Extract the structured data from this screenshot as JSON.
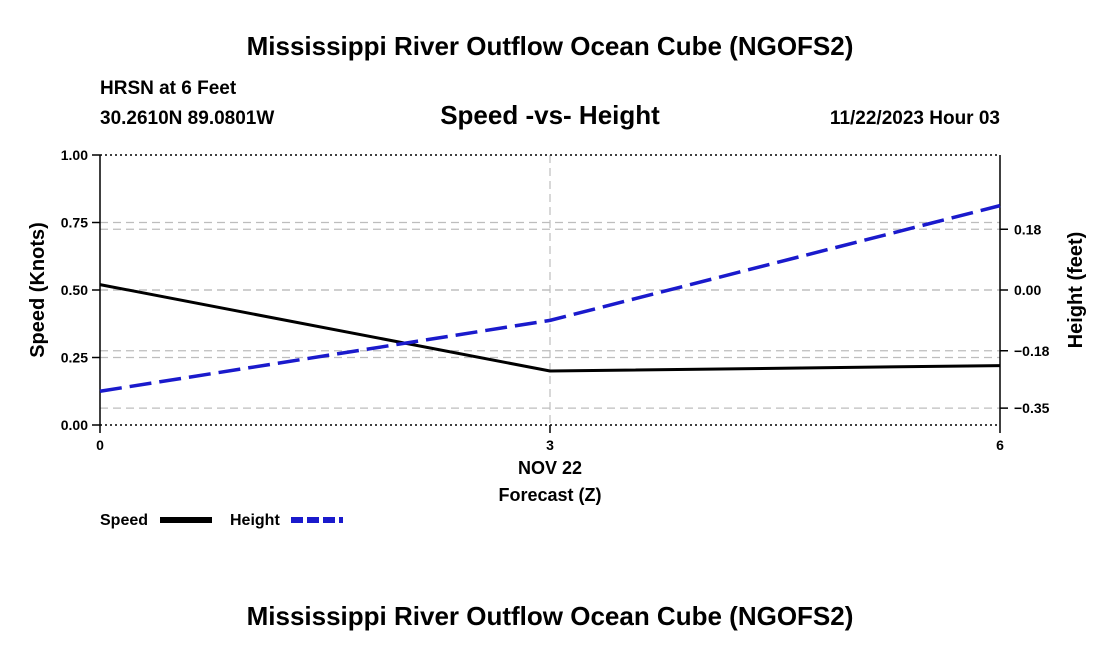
{
  "page": {
    "title": "Mississippi River Outflow Ocean Cube (NGOFS2)",
    "title_repeat": "Mississippi River Outflow Ocean Cube (NGOFS2)"
  },
  "info": {
    "station": "HRSN at 6 Feet",
    "coords": "30.2610N  89.0801W",
    "datetime": "11/22/2023 Hour 03"
  },
  "chart_data": {
    "type": "line",
    "title": "Speed -vs- Height",
    "xlabel": "Forecast (Z)",
    "xdate_label": "NOV 22",
    "ylabel": "Speed (Knots)",
    "y2label": "Height (feet)",
    "x": [
      0,
      3,
      6
    ],
    "x_tick_labels": [
      "0",
      "3",
      "6"
    ],
    "xlim": [
      0,
      6
    ],
    "ylim": [
      0,
      1
    ],
    "y_ticks": [
      0,
      0.25,
      0.5,
      0.75,
      1.0
    ],
    "y_tick_labels": [
      "0.00",
      "0.25",
      "0.50",
      "0.75",
      "1.00"
    ],
    "y2lim": [
      -0.4,
      0.4
    ],
    "y2_ticks": [
      -0.35,
      -0.18,
      0.0,
      0.18
    ],
    "y2_tick_labels": [
      "−0.35",
      "−0.18",
      "0.00",
      "0.18"
    ],
    "series": [
      {
        "name": "Speed",
        "axis": "left",
        "values": [
          0.52,
          0.2,
          0.22
        ],
        "color": "#000000",
        "dash": "solid"
      },
      {
        "name": "Height",
        "axis": "right",
        "values": [
          -0.3,
          -0.09,
          0.25
        ],
        "color": "#1a1acc",
        "dash": "dashed"
      }
    ],
    "legend": [
      "Speed",
      "Height"
    ]
  }
}
